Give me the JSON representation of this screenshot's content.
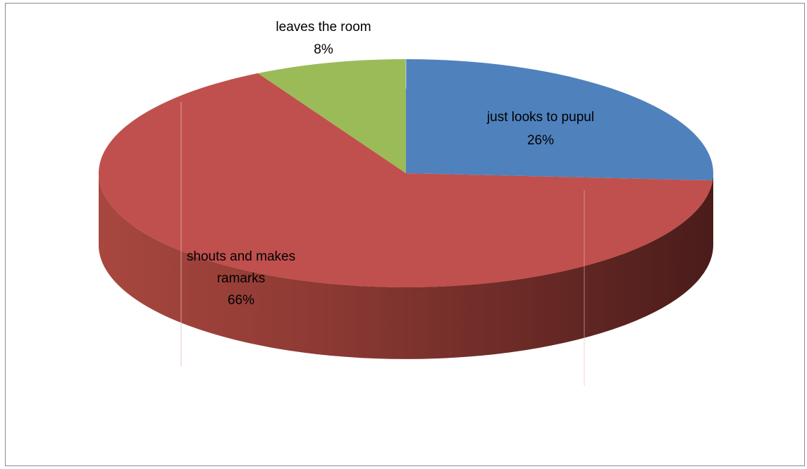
{
  "chart_data": {
    "type": "pie",
    "style": "3d",
    "title": "",
    "slices": [
      {
        "label_lines": [
          "just looks to pupul"
        ],
        "percent_label": "26%",
        "value": 26,
        "color": "#4f81bd"
      },
      {
        "label_lines": [
          "shouts and makes",
          "ramarks"
        ],
        "percent_label": "66%",
        "value": 66,
        "color": "#c0504d"
      },
      {
        "label_lines": [
          "leaves the room"
        ],
        "percent_label": "8%",
        "value": 8,
        "color": "#9bbb59"
      }
    ]
  }
}
